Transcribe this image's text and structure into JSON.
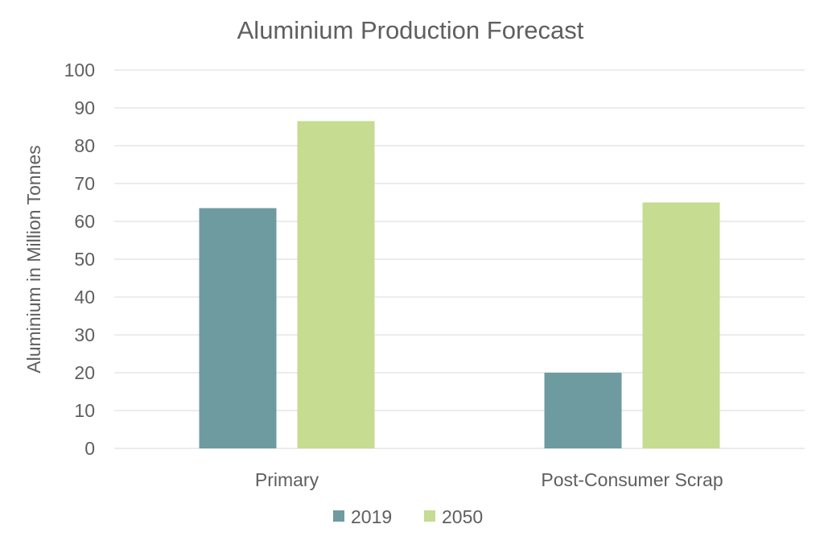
{
  "chart_data": {
    "type": "bar",
    "title": "Aluminium Production Forecast",
    "xlabel": "",
    "ylabel": "Aluminium in Million Tonnes",
    "categories": [
      "Primary",
      "Post-Consumer Scrap"
    ],
    "series": [
      {
        "name": "2019",
        "values": [
          63.5,
          20
        ],
        "color": "#6e9ba0"
      },
      {
        "name": "2050",
        "values": [
          86.5,
          65
        ],
        "color": "#c5dc91"
      }
    ],
    "ylim": [
      0,
      100
    ],
    "yticks": [
      0,
      10,
      20,
      30,
      40,
      50,
      60,
      70,
      80,
      90,
      100
    ],
    "grid": true,
    "legend_position": "bottom"
  }
}
